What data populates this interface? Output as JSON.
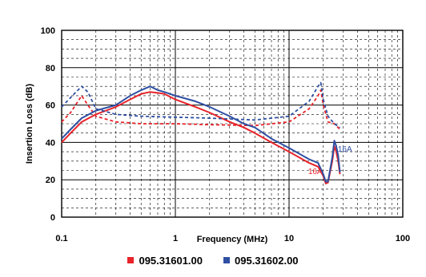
{
  "chart_data": {
    "type": "line",
    "title": "",
    "xlabel": "Frequency (MHz)",
    "ylabel": "Insertion Loss (dB)",
    "x_scale": "log",
    "xlim": [
      0.1,
      100
    ],
    "ylim": [
      0,
      100
    ],
    "grid": true,
    "legend_position": "bottom",
    "x_ticks": [
      {
        "value": 0.1,
        "label": "0.1"
      },
      {
        "value": 1,
        "label": "1"
      },
      {
        "value": 10,
        "label": "10"
      },
      {
        "value": 100,
        "label": "100"
      }
    ],
    "y_ticks": [
      {
        "value": 0,
        "label": "0"
      },
      {
        "value": 20,
        "label": "20"
      },
      {
        "value": 40,
        "label": "40"
      },
      {
        "value": 60,
        "label": "60"
      },
      {
        "value": 80,
        "label": "80"
      },
      {
        "value": 100,
        "label": "100"
      }
    ],
    "series": [
      {
        "name": "095.31601.00",
        "color": "#e8232a",
        "style": "solid",
        "points": [
          [
            0.1,
            40
          ],
          [
            0.12,
            45
          ],
          [
            0.15,
            51
          ],
          [
            0.2,
            55
          ],
          [
            0.3,
            59
          ],
          [
            0.4,
            63
          ],
          [
            0.5,
            66
          ],
          [
            0.6,
            67
          ],
          [
            0.7,
            66.5
          ],
          [
            0.8,
            66
          ],
          [
            1,
            63
          ],
          [
            1.5,
            59
          ],
          [
            2,
            56
          ],
          [
            3,
            51
          ],
          [
            4,
            48
          ],
          [
            5,
            45
          ],
          [
            7,
            40
          ],
          [
            10,
            35
          ],
          [
            15,
            29
          ],
          [
            18,
            27
          ],
          [
            20,
            22
          ],
          [
            21,
            18
          ],
          [
            22,
            18.5
          ],
          [
            24,
            30
          ],
          [
            25,
            38
          ],
          [
            26,
            35
          ],
          [
            27,
            30
          ],
          [
            28,
            23
          ]
        ]
      },
      {
        "name": "",
        "color": "#e8232a",
        "style": "dashed",
        "points": [
          [
            0.1,
            51
          ],
          [
            0.12,
            56
          ],
          [
            0.15,
            65
          ],
          [
            0.17,
            60
          ],
          [
            0.2,
            54
          ],
          [
            0.3,
            51
          ],
          [
            0.5,
            50
          ],
          [
            1,
            50
          ],
          [
            2,
            49.5
          ],
          [
            5,
            49
          ],
          [
            10,
            51
          ],
          [
            15,
            58
          ],
          [
            18,
            65
          ],
          [
            19,
            68
          ],
          [
            20,
            60
          ],
          [
            22,
            51
          ],
          [
            25,
            50
          ],
          [
            28,
            47
          ]
        ]
      },
      {
        "name": "095.31602.00",
        "color": "#2e4fa2",
        "style": "solid",
        "points": [
          [
            0.1,
            42
          ],
          [
            0.12,
            47
          ],
          [
            0.15,
            53
          ],
          [
            0.2,
            57
          ],
          [
            0.3,
            60
          ],
          [
            0.4,
            65
          ],
          [
            0.5,
            68
          ],
          [
            0.6,
            70
          ],
          [
            0.7,
            68
          ],
          [
            0.8,
            67
          ],
          [
            1,
            65
          ],
          [
            1.5,
            62
          ],
          [
            2,
            59
          ],
          [
            3,
            54
          ],
          [
            4,
            50
          ],
          [
            5,
            48
          ],
          [
            7,
            42
          ],
          [
            10,
            37
          ],
          [
            15,
            31
          ],
          [
            18,
            29
          ],
          [
            20,
            23
          ],
          [
            21,
            19
          ],
          [
            22,
            19
          ],
          [
            24,
            32
          ],
          [
            25,
            41
          ],
          [
            26,
            38
          ],
          [
            27,
            33
          ],
          [
            28,
            24
          ]
        ]
      },
      {
        "name": "",
        "color": "#2e4fa2",
        "style": "dashed",
        "points": [
          [
            0.1,
            59
          ],
          [
            0.12,
            64
          ],
          [
            0.15,
            70
          ],
          [
            0.17,
            67
          ],
          [
            0.2,
            58
          ],
          [
            0.3,
            55
          ],
          [
            0.5,
            54
          ],
          [
            1,
            53.5
          ],
          [
            2,
            53
          ],
          [
            5,
            52
          ],
          [
            10,
            54
          ],
          [
            15,
            62
          ],
          [
            18,
            70
          ],
          [
            19,
            72
          ],
          [
            20,
            63
          ],
          [
            22,
            54
          ],
          [
            25,
            50
          ],
          [
            28,
            48
          ]
        ]
      }
    ],
    "annotations": [
      {
        "text": "16A",
        "color": "#e8232a",
        "x": 17,
        "y": 23
      },
      {
        "text": "16A",
        "color": "#2e4fa2",
        "x": 31,
        "y": 35
      }
    ]
  },
  "legend": {
    "items": [
      {
        "label": "095.31601.00",
        "color": "#e8232a"
      },
      {
        "label": "095.31602.00",
        "color": "#2e4fa2"
      }
    ]
  }
}
